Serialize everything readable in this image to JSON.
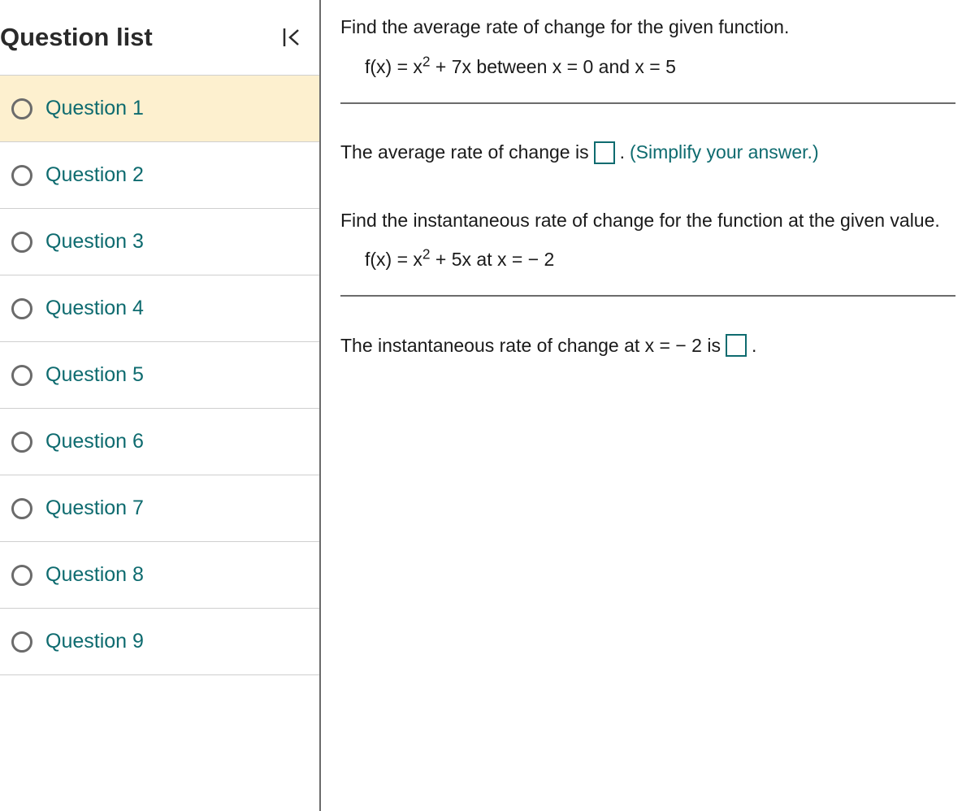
{
  "sidebar": {
    "title": "Question list",
    "items": [
      {
        "label": "Question 1",
        "selected": true
      },
      {
        "label": "Question 2",
        "selected": false
      },
      {
        "label": "Question 3",
        "selected": false
      },
      {
        "label": "Question 4",
        "selected": false
      },
      {
        "label": "Question 5",
        "selected": false
      },
      {
        "label": "Question 6",
        "selected": false
      },
      {
        "label": "Question 7",
        "selected": false
      },
      {
        "label": "Question 8",
        "selected": false
      },
      {
        "label": "Question 9",
        "selected": false
      }
    ]
  },
  "content": {
    "part1": {
      "prompt": "Find the average rate of change for the given function.",
      "eq_lhs": "f(x) = x",
      "eq_exp": "2",
      "eq_rest": " + 7x between x = 0 and x = 5",
      "answer_prefix": "The average rate of change is ",
      "answer_period": ".",
      "simplify": " (Simplify your answer.)"
    },
    "part2": {
      "prompt": "Find the instantaneous rate of change for the function at the given value.",
      "eq_lhs": "f(x) = x",
      "eq_exp": "2",
      "eq_rest": " + 5x at x = − 2",
      "answer_prefix": "The instantaneous rate of change at x = − 2 is ",
      "answer_period": "."
    }
  },
  "colors": {
    "teal": "#0e6b6f",
    "text": "#1a1a1a",
    "border_dark": "#6b6b6b",
    "border_light": "#cfcfcf",
    "highlight": "#fdf0cf",
    "background": "#ffffff"
  }
}
